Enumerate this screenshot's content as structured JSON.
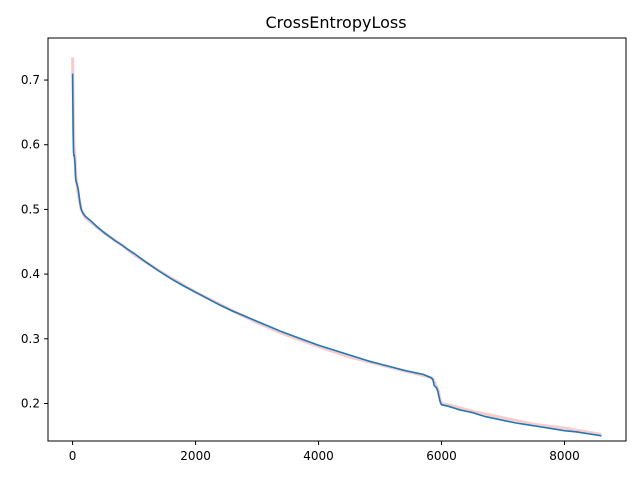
{
  "chart_data": {
    "type": "line",
    "title": "CrossEntropyLoss",
    "xlabel": "",
    "ylabel": "",
    "xlim": [
      -400,
      9000
    ],
    "ylim": [
      0.142,
      0.765
    ],
    "xticks": [
      0,
      2000,
      4000,
      6000,
      8000
    ],
    "yticks": [
      0.2,
      0.3,
      0.4,
      0.5,
      0.6,
      0.7
    ],
    "grid": false,
    "legend": "none",
    "series": [
      {
        "role": "raw-band",
        "color": "#f4a0a0",
        "x": [
          0,
          8,
          16,
          24,
          32,
          40,
          50,
          60,
          70,
          80,
          100,
          140,
          200,
          400,
          600,
          800,
          1000,
          1500,
          2000,
          2500,
          3000,
          3500,
          4000,
          4500,
          5000,
          5500,
          5800,
          5860,
          5900,
          5940,
          5980,
          6000,
          6200,
          6500,
          7000,
          7500,
          8000,
          8600
        ],
        "y": [
          0.735,
          0.68,
          0.63,
          0.595,
          0.59,
          0.58,
          0.555,
          0.545,
          0.54,
          0.53,
          0.52,
          0.5,
          0.488,
          0.472,
          0.458,
          0.445,
          0.43,
          0.4,
          0.372,
          0.348,
          0.325,
          0.305,
          0.288,
          0.272,
          0.26,
          0.248,
          0.241,
          0.238,
          0.23,
          0.222,
          0.205,
          0.2,
          0.196,
          0.188,
          0.178,
          0.168,
          0.162,
          0.152
        ]
      },
      {
        "role": "smoothed",
        "color": "#1f77b4",
        "x": [
          0,
          5,
          10,
          15,
          20,
          25,
          30,
          40,
          50,
          60,
          70,
          80,
          90,
          100,
          120,
          140,
          170,
          200,
          250,
          300,
          400,
          500,
          600,
          700,
          800,
          900,
          1000,
          1200,
          1400,
          1600,
          1800,
          2000,
          2200,
          2400,
          2600,
          2800,
          3000,
          3200,
          3400,
          3600,
          3800,
          4000,
          4200,
          4400,
          4600,
          4800,
          5000,
          5200,
          5400,
          5600,
          5700,
          5800,
          5830,
          5860,
          5880,
          5900,
          5920,
          5940,
          5960,
          5980,
          6000,
          6100,
          6200,
          6300,
          6400,
          6500,
          6600,
          6700,
          6800,
          7000,
          7200,
          7400,
          7600,
          7800,
          8000,
          8200,
          8400,
          8600
        ],
        "y": [
          0.71,
          0.66,
          0.615,
          0.59,
          0.583,
          0.584,
          0.581,
          0.57,
          0.548,
          0.542,
          0.54,
          0.535,
          0.532,
          0.525,
          0.51,
          0.5,
          0.494,
          0.49,
          0.486,
          0.482,
          0.473,
          0.465,
          0.458,
          0.451,
          0.445,
          0.438,
          0.432,
          0.418,
          0.405,
          0.393,
          0.382,
          0.372,
          0.362,
          0.352,
          0.343,
          0.335,
          0.327,
          0.319,
          0.311,
          0.304,
          0.297,
          0.29,
          0.284,
          0.278,
          0.272,
          0.266,
          0.261,
          0.256,
          0.251,
          0.247,
          0.245,
          0.241,
          0.24,
          0.237,
          0.228,
          0.226,
          0.224,
          0.219,
          0.21,
          0.202,
          0.198,
          0.196,
          0.193,
          0.19,
          0.188,
          0.186,
          0.183,
          0.18,
          0.178,
          0.174,
          0.17,
          0.167,
          0.164,
          0.161,
          0.158,
          0.156,
          0.153,
          0.15
        ]
      }
    ]
  }
}
